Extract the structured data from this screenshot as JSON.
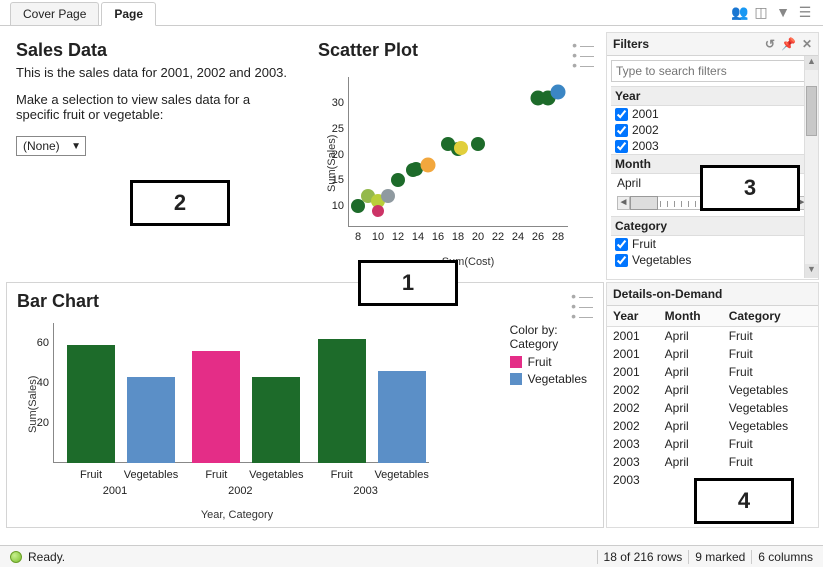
{
  "tabs": {
    "cover": "Cover Page",
    "page": "Page",
    "active": "page"
  },
  "sales": {
    "title": "Sales Data",
    "subtitle": "This is the sales data for 2001, 2002 and 2003.",
    "instruction": "Make a selection to view sales data for a specific fruit or vegetable:",
    "dropdown_value": "(None)"
  },
  "scatter": {
    "title": "Scatter Plot",
    "xlabel": "Sum(Cost)",
    "ylabel": "Sum(Sales)",
    "xlim": [
      7,
      29
    ],
    "ylim": [
      6,
      34
    ],
    "xticks": [
      8,
      10,
      12,
      14,
      16,
      18,
      20,
      22,
      24,
      26,
      28
    ],
    "yticks": [
      10,
      15,
      20,
      25,
      30
    ],
    "points": [
      {
        "x": 8,
        "y": 10,
        "color": "#1d6b2a",
        "size": 14
      },
      {
        "x": 9,
        "y": 12,
        "color": "#94b94c",
        "size": 14
      },
      {
        "x": 10,
        "y": 11,
        "color": "#b9cf3a",
        "size": 14
      },
      {
        "x": 10,
        "y": 9,
        "color": "#cc3366",
        "size": 12
      },
      {
        "x": 11,
        "y": 12,
        "color": "#8f9aa0",
        "size": 14
      },
      {
        "x": 12,
        "y": 15,
        "color": "#1d6b2a",
        "size": 14
      },
      {
        "x": 13.5,
        "y": 17,
        "color": "#1d6b2a",
        "size": 14
      },
      {
        "x": 13.8,
        "y": 17.2,
        "color": "#1d6b2a",
        "size": 14
      },
      {
        "x": 15,
        "y": 18,
        "color": "#f2a73d",
        "size": 15
      },
      {
        "x": 17,
        "y": 22,
        "color": "#1d6b2a",
        "size": 14
      },
      {
        "x": 18,
        "y": 21,
        "color": "#1d6b2a",
        "size": 14
      },
      {
        "x": 18.3,
        "y": 21.3,
        "color": "#e1cf3c",
        "size": 14
      },
      {
        "x": 20,
        "y": 22,
        "color": "#1d6b2a",
        "size": 14
      },
      {
        "x": 26,
        "y": 31,
        "color": "#1d6b2a",
        "size": 15
      },
      {
        "x": 27,
        "y": 31,
        "color": "#1d6b2a",
        "size": 15
      },
      {
        "x": 28,
        "y": 32,
        "color": "#3b86c4",
        "size": 15
      }
    ]
  },
  "bar": {
    "title": "Bar Chart",
    "ylabel": "Sum(Sales)",
    "xlabel": "Year,  Category",
    "ylim": [
      0,
      70
    ],
    "yticks": [
      20,
      40,
      60
    ],
    "legend_title": "Color by:",
    "legend_field": "Category",
    "legend": [
      {
        "label": "Fruit",
        "color": "#e42d87"
      },
      {
        "label": "Vegetables",
        "color": "#5b8fc7"
      }
    ],
    "groups": [
      {
        "year": "2001",
        "bars": [
          {
            "cat": "Fruit",
            "val": 59,
            "color": "#1d6b2a"
          },
          {
            "cat": "Vegetables",
            "val": 43,
            "color": "#5b8fc7"
          }
        ]
      },
      {
        "year": "2002",
        "bars": [
          {
            "cat": "Fruit",
            "val": 56,
            "color": "#e42d87"
          },
          {
            "cat": "Vegetables",
            "val": 43,
            "color": "#1d6b2a"
          }
        ]
      },
      {
        "year": "2003",
        "bars": [
          {
            "cat": "Fruit",
            "val": 62,
            "color": "#1d6b2a"
          },
          {
            "cat": "Vegetables",
            "val": 46,
            "color": "#5b8fc7"
          }
        ]
      }
    ]
  },
  "filters": {
    "title": "Filters",
    "search_placeholder": "Type to search filters",
    "year": {
      "label": "Year",
      "items": [
        "2001",
        "2002",
        "2003"
      ],
      "checked": [
        true,
        true,
        true
      ]
    },
    "month": {
      "label": "Month",
      "value": "April"
    },
    "category": {
      "label": "Category",
      "items": [
        "Fruit",
        "Vegetables"
      ],
      "checked": [
        true,
        true
      ]
    }
  },
  "details": {
    "title": "Details-on-Demand",
    "columns": [
      "Year",
      "Month",
      "Category"
    ],
    "rows": [
      [
        "2001",
        "April",
        "Fruit"
      ],
      [
        "2001",
        "April",
        "Fruit"
      ],
      [
        "2001",
        "April",
        "Fruit"
      ],
      [
        "2002",
        "April",
        "Vegetables"
      ],
      [
        "2002",
        "April",
        "Vegetables"
      ],
      [
        "2002",
        "April",
        "Vegetables"
      ],
      [
        "2003",
        "April",
        "Fruit"
      ],
      [
        "2003",
        "April",
        "Fruit"
      ],
      [
        "2003",
        "",
        ""
      ]
    ]
  },
  "status": {
    "ready": "Ready.",
    "rows": "18 of 216 rows",
    "marked": "9 marked",
    "columns": "6 columns"
  },
  "annotations": {
    "a1": "1",
    "a2": "2",
    "a3": "3",
    "a4": "4"
  }
}
